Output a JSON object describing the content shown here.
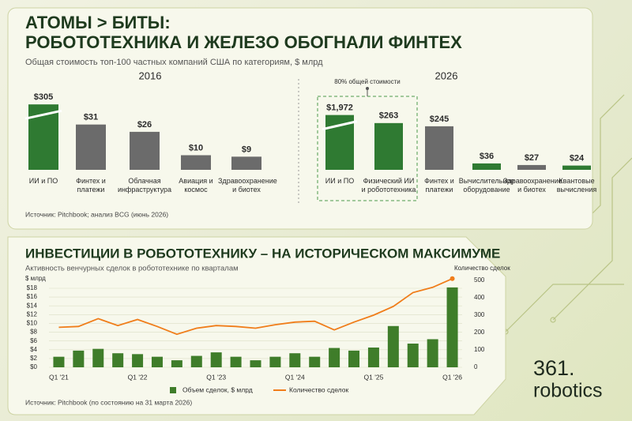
{
  "panel": {
    "title": [
      "АТОМЫ > БИТЫ:",
      "РОБОТОТЕХНИКА И ЖЕЛЕЗО ОБОГНАЛИ ФИНТЕХ"
    ],
    "subtitle": "Общая стоимость топ-100 частных компаний США по категориям, $ млрд",
    "source": "Источник: Pitchbook; анализ BCG (июнь 2026)"
  },
  "chart_data": [
    {
      "type": "bar",
      "title": "2016",
      "categories": [
        "ИИ и ПО",
        "Финтех и платежи",
        "Облачная инфраструктура",
        "Авиация и космос",
        "Здравоохранение и биотех"
      ],
      "values": [
        305,
        31,
        26,
        10,
        9
      ],
      "value_labels": [
        "$305",
        "$31",
        "$26",
        "$10",
        "$9"
      ],
      "colors": [
        "#2f7a32",
        "#6b6b6b",
        "#6b6b6b",
        "#6b6b6b",
        "#6b6b6b"
      ]
    },
    {
      "type": "bar",
      "title": "2026",
      "annotation": "80% общей стоимости",
      "categories": [
        "ИИ и ПО",
        "Физический ИИ и робототехника",
        "Финтех и платежи",
        "Вычислительное оборудование",
        "Здравоохранение и биотех",
        "Квантовые вычисления"
      ],
      "values": [
        1972,
        263,
        245,
        36,
        27,
        24
      ],
      "value_labels": [
        "$1,972",
        "$263",
        "$245",
        "$36",
        "$27",
        "$24"
      ],
      "colors": [
        "#2f7a32",
        "#2f7a32",
        "#6b6b6b",
        "#2f7a32",
        "#6b6b6b",
        "#2f7a32"
      ]
    },
    {
      "type": "combo",
      "title": "ИНВЕСТИЦИИ В РОБОТОТЕХНИКУ – НА ИСТОРИЧЕСКОМ МАКСИМУМЕ",
      "subtitle": "Активность венчурных сделок в робототехнике по кварталам",
      "y_label": "$ млрд",
      "y2_label": "Количество сделок",
      "source": "Источник: Pitchbook (по состоянию на 31 марта 2026)",
      "categories": [
        "Q1 '21",
        null,
        null,
        null,
        "Q1 '22",
        null,
        null,
        null,
        "Q1 '23",
        null,
        null,
        null,
        "Q1 '24",
        null,
        null,
        null,
        "Q1 '25",
        null,
        null,
        null,
        "Q1 '26"
      ],
      "ylim": [
        0,
        19.8
      ],
      "yticks": [
        {
          "value": 0,
          "label": "$0"
        },
        {
          "value": 2,
          "label": "$2"
        },
        {
          "value": 4,
          "label": "$4"
        },
        {
          "value": 6,
          "label": "$6"
        },
        {
          "value": 8,
          "label": "$8"
        },
        {
          "value": 10,
          "label": "$10"
        },
        {
          "value": 12,
          "label": "$12"
        },
        {
          "value": 14,
          "label": "$14"
        },
        {
          "value": 16,
          "label": "$16"
        },
        {
          "value": 18,
          "label": "$18"
        }
      ],
      "y2lim": [
        0,
        500
      ],
      "y2ticks": [
        0,
        100,
        200,
        300,
        400,
        500
      ],
      "series": [
        {
          "name": "Объем сделок, $ млрд",
          "type": "bar",
          "color": "#3f7d2a",
          "values": [
            2.4,
            3.8,
            4.2,
            3.2,
            3.0,
            2.4,
            1.6,
            2.6,
            3.4,
            2.4,
            1.6,
            2.4,
            3.2,
            2.4,
            4.4,
            3.8,
            4.5,
            9.4,
            5.4,
            6.4,
            18.2
          ]
        },
        {
          "name": "Количество сделок",
          "type": "line",
          "axis": "y2",
          "color": "#f07d1a",
          "values": [
            230,
            235,
            280,
            240,
            275,
            235,
            190,
            225,
            240,
            235,
            225,
            245,
            260,
            265,
            215,
            260,
            300,
            350,
            430,
            460,
            510
          ]
        }
      ]
    }
  ],
  "logo": [
    "361.",
    "robotics"
  ]
}
